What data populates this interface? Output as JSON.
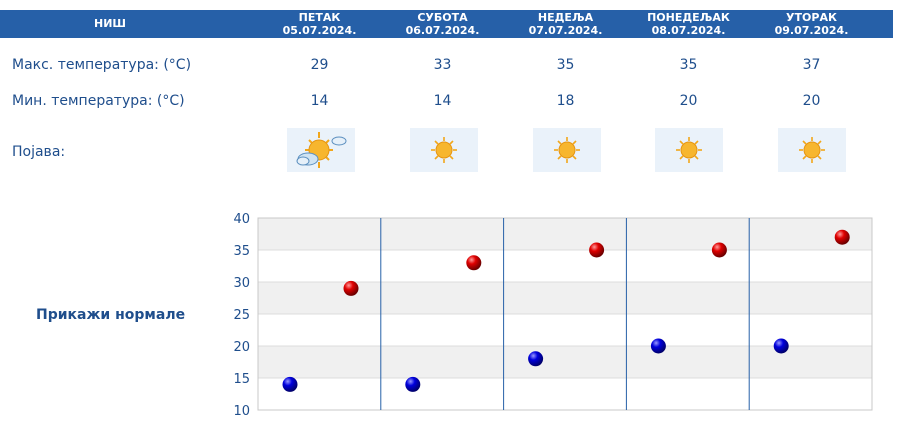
{
  "location": "НИШ",
  "days": [
    {
      "name": "ПЕТАК",
      "date": "05.07.2024.",
      "max": "29",
      "min": "14",
      "icon": "partly-cloudy-sun-icon"
    },
    {
      "name": "СУБОТА",
      "date": "06.07.2024.",
      "max": "33",
      "min": "14",
      "icon": "sun-icon"
    },
    {
      "name": "НЕДЕЉА",
      "date": "07.07.2024.",
      "max": "35",
      "min": "18",
      "icon": "sun-icon"
    },
    {
      "name": "ПОНЕДЕЉАК",
      "date": "08.07.2024.",
      "max": "35",
      "min": "20",
      "icon": "sun-icon"
    },
    {
      "name": "УТОРАК",
      "date": "09.07.2024.",
      "max": "37",
      "min": "20",
      "icon": "sun-icon"
    }
  ],
  "labels": {
    "max": "Макс. температура: (°C)",
    "min": "Мин. температура: (°C)",
    "phenomenon": "Појава:"
  },
  "show_normals": "Прикажи нормале",
  "colors": {
    "header": "#2660a8",
    "text": "#1f4e8c",
    "max_marker": "#cc0000",
    "min_marker": "#0000cc",
    "divider": "#2660a8"
  },
  "chart_data": {
    "type": "scatter",
    "categories": [
      "05.07.2024.",
      "06.07.2024.",
      "07.07.2024.",
      "08.07.2024.",
      "09.07.2024."
    ],
    "series": [
      {
        "values": [
          29,
          33,
          35,
          35,
          37
        ]
      },
      {
        "values": [
          14,
          14,
          18,
          20,
          20
        ]
      }
    ],
    "yticks": [
      "10",
      "15",
      "20",
      "25",
      "30",
      "35",
      "40"
    ],
    "ylim": [
      10,
      40
    ],
    "grid": true,
    "title": "",
    "xlabel": "",
    "ylabel": ""
  }
}
